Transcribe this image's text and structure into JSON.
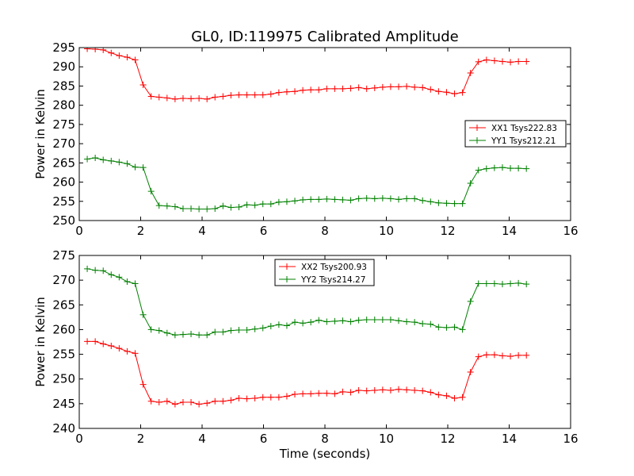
{
  "chart_data": [
    {
      "type": "line",
      "title": "GL0, ID:119975 Calibrated Amplitude",
      "xlabel": "",
      "ylabel": "Power in Kelvin",
      "xlim": [
        0,
        16
      ],
      "ylim": [
        250,
        295
      ],
      "xticks": [
        0,
        2,
        4,
        6,
        8,
        10,
        12,
        14,
        16
      ],
      "yticks": [
        250,
        255,
        260,
        265,
        270,
        275,
        280,
        285,
        290,
        295
      ],
      "grid": false,
      "legend": "right",
      "x": [
        0.26,
        0.52,
        0.78,
        1.04,
        1.3,
        1.56,
        1.82,
        2.08,
        2.34,
        2.6,
        2.86,
        3.12,
        3.38,
        3.64,
        3.9,
        4.16,
        4.42,
        4.68,
        4.94,
        5.2,
        5.46,
        5.72,
        5.98,
        6.24,
        6.5,
        6.76,
        7.02,
        7.28,
        7.54,
        7.8,
        8.06,
        8.32,
        8.58,
        8.84,
        9.1,
        9.36,
        9.62,
        9.88,
        10.14,
        10.4,
        10.66,
        10.92,
        11.18,
        11.44,
        11.7,
        11.96,
        12.22,
        12.48,
        12.74,
        13.0,
        13.26,
        13.52,
        13.78,
        14.04,
        14.3,
        14.56
      ],
      "series": [
        {
          "name": "XX1 Tsys222.83",
          "color": "#ff0000",
          "values": [
            294.7,
            294.6,
            294.4,
            293.6,
            292.9,
            292.5,
            291.8,
            285.3,
            282.3,
            282.1,
            281.9,
            281.6,
            281.8,
            281.7,
            281.8,
            281.6,
            282.1,
            282.3,
            282.6,
            282.7,
            282.7,
            282.7,
            282.7,
            282.9,
            283.3,
            283.5,
            283.6,
            283.9,
            284.0,
            284.0,
            284.3,
            284.3,
            284.3,
            284.4,
            284.6,
            284.3,
            284.5,
            284.7,
            284.8,
            284.8,
            284.9,
            284.7,
            284.6,
            284.1,
            283.6,
            283.4,
            283.0,
            283.3,
            288.4,
            291.3,
            291.8,
            291.6,
            291.4,
            291.2,
            291.4,
            291.4
          ]
        },
        {
          "name": "YY1 Tsys212.21",
          "color": "#008000",
          "values": [
            266.0,
            266.3,
            265.8,
            265.5,
            265.2,
            264.8,
            263.9,
            263.8,
            257.6,
            253.9,
            253.8,
            253.6,
            253.1,
            253.1,
            253.0,
            253.0,
            253.1,
            253.8,
            253.4,
            253.5,
            254.1,
            254.0,
            254.3,
            254.3,
            254.8,
            254.9,
            255.1,
            255.4,
            255.5,
            255.5,
            255.6,
            255.5,
            255.4,
            255.3,
            255.7,
            255.8,
            255.7,
            255.8,
            255.7,
            255.5,
            255.7,
            255.7,
            255.2,
            254.9,
            254.6,
            254.5,
            254.4,
            254.4,
            259.7,
            263.1,
            263.5,
            263.7,
            263.8,
            263.6,
            263.6,
            263.5
          ]
        }
      ]
    },
    {
      "type": "line",
      "title": "",
      "xlabel": "Time (seconds)",
      "ylabel": "Power in Kelvin",
      "xlim": [
        0,
        16
      ],
      "ylim": [
        240,
        275
      ],
      "xticks": [
        0,
        2,
        4,
        6,
        8,
        10,
        12,
        14,
        16
      ],
      "yticks": [
        240,
        245,
        250,
        255,
        260,
        265,
        270,
        275
      ],
      "grid": false,
      "legend": "top-center",
      "x": [
        0.26,
        0.52,
        0.78,
        1.04,
        1.3,
        1.56,
        1.82,
        2.08,
        2.34,
        2.6,
        2.86,
        3.12,
        3.38,
        3.64,
        3.9,
        4.16,
        4.42,
        4.68,
        4.94,
        5.2,
        5.46,
        5.72,
        5.98,
        6.24,
        6.5,
        6.76,
        7.02,
        7.28,
        7.54,
        7.8,
        8.06,
        8.32,
        8.58,
        8.84,
        9.1,
        9.36,
        9.62,
        9.88,
        10.14,
        10.4,
        10.66,
        10.92,
        11.18,
        11.44,
        11.7,
        11.96,
        12.22,
        12.48,
        12.74,
        13.0,
        13.26,
        13.52,
        13.78,
        14.04,
        14.3,
        14.56
      ],
      "series": [
        {
          "name": "XX2 Tsys200.93",
          "color": "#ff0000",
          "values": [
            257.6,
            257.6,
            257.1,
            256.7,
            256.2,
            255.6,
            255.2,
            248.9,
            245.5,
            245.3,
            245.5,
            244.9,
            245.3,
            245.3,
            244.9,
            245.1,
            245.5,
            245.5,
            245.7,
            246.1,
            246.0,
            246.1,
            246.3,
            246.3,
            246.3,
            246.5,
            246.9,
            247.0,
            247.0,
            247.1,
            247.1,
            247.0,
            247.4,
            247.3,
            247.7,
            247.6,
            247.7,
            247.8,
            247.7,
            247.9,
            247.8,
            247.7,
            247.6,
            247.3,
            246.8,
            246.6,
            246.1,
            246.3,
            251.4,
            254.5,
            254.9,
            254.9,
            254.7,
            254.6,
            254.8,
            254.8
          ]
        },
        {
          "name": "YY2 Tsys214.27",
          "color": "#008000",
          "values": [
            272.3,
            272.0,
            271.9,
            271.1,
            270.6,
            269.7,
            269.3,
            263.0,
            260.0,
            259.8,
            259.3,
            258.9,
            259.0,
            259.1,
            258.9,
            258.9,
            259.5,
            259.5,
            259.8,
            259.9,
            259.9,
            260.1,
            260.3,
            260.7,
            261.0,
            260.8,
            261.5,
            261.3,
            261.5,
            261.9,
            261.6,
            261.7,
            261.8,
            261.6,
            261.9,
            262.0,
            262.0,
            262.0,
            262.0,
            261.8,
            261.6,
            261.5,
            261.2,
            261.1,
            260.5,
            260.4,
            260.5,
            260.0,
            265.7,
            269.3,
            269.3,
            269.3,
            269.2,
            269.3,
            269.4,
            269.2
          ]
        }
      ]
    }
  ]
}
